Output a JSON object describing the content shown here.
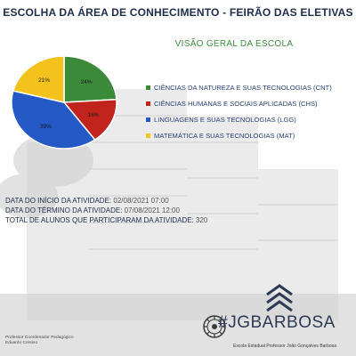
{
  "header": {
    "title": "ESCOLHA DA ÁREA DE CONHECIMENTO - FEIRÃO DAS ELETIVAS"
  },
  "chart_data": {
    "type": "pie",
    "title": "VISÃO GERAL DA ESCOLA",
    "slices": [
      {
        "label": "CIÊNCIAS DA NATUREZA E SUAS TECNOLOGIAS (CNT)",
        "value": 24,
        "value_label": "24%",
        "color": "#3a8a3a"
      },
      {
        "label": "CIÊNCIAS HUMANAS E SOCIAIS APLICADAS (CHS)",
        "value": 16,
        "value_label": "16%",
        "color": "#c0241c"
      },
      {
        "label": "LINGUAGENS E SUAS TECNOLOGIAS (LGG)",
        "value": 39,
        "value_label": "39%",
        "color": "#2459c6"
      },
      {
        "label": "MATEMÁTICA E SUAS TECNOLOGIAS (MAT)",
        "value": 21,
        "value_label": "21%",
        "color": "#f3c21d"
      }
    ],
    "legend_position": "right"
  },
  "info": {
    "start": {
      "label": "DATA DO INÍCIO DA ATIVIDADE:",
      "value": "02/08/2021 07:00"
    },
    "end": {
      "label": "DATA DO TÉRMINO DA ATIVIDADE:",
      "value": "07/08/2021 12:00"
    },
    "students": {
      "label": "TOTAL DE ALUNOS QUE PARTICIPARAM DA ATIVIDADE:",
      "value": "320"
    }
  },
  "footer": {
    "role": "Professor Coordenador Pedagógico",
    "name": "Eduardo Corsino"
  },
  "brand": {
    "hashtag": "#JGBARBOSA",
    "school": "Escola Estadual Professor João Gonçalves Barbosa"
  }
}
